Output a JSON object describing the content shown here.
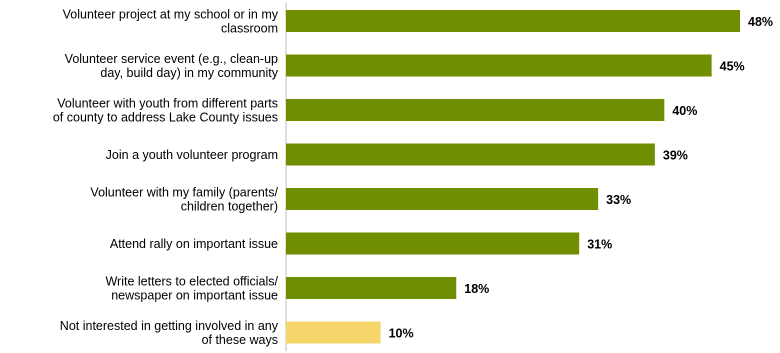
{
  "chart_data": {
    "type": "bar",
    "orientation": "horizontal",
    "categories": [
      [
        "Volunteer project at my school or in my",
        "classroom"
      ],
      [
        "Volunteer service event (e.g., clean-up",
        "day, build day) in my community"
      ],
      [
        "Volunteer with youth from different parts",
        "of  county to address Lake County issues"
      ],
      [
        "Join a youth volunteer program"
      ],
      [
        "Volunteer with my family (parents/",
        "children together)"
      ],
      [
        "Attend rally on important issue"
      ],
      [
        "Write letters to elected officials/",
        "newspaper on important issue"
      ],
      [
        "Not interested in getting involved in any",
        "of these ways"
      ]
    ],
    "values": [
      48,
      45,
      40,
      39,
      33,
      31,
      18,
      10
    ],
    "value_labels": [
      "48%",
      "45%",
      "40%",
      "39%",
      "33%",
      "31%",
      "18%",
      "10%"
    ],
    "highlight_index": 7,
    "xlim": [
      0,
      48
    ],
    "title": "",
    "xlabel": "",
    "ylabel": "",
    "grid": false,
    "legend": "none",
    "colors": {
      "bar": "#6f8f00",
      "highlight_bar": "#f6d56b",
      "text": "#000000"
    }
  }
}
